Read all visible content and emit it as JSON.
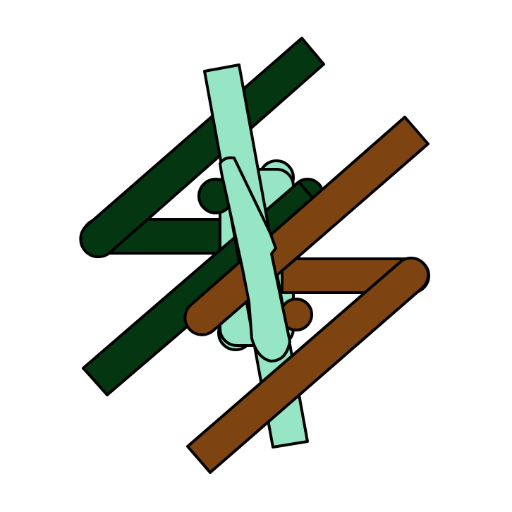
{
  "figure": {
    "description_free": true,
    "background_color": "#ffffff",
    "outline_color": "#000000",
    "colors": {
      "dark_green": "#053612",
      "mint": "#96e6c5",
      "brown": "#7d4411"
    }
  }
}
